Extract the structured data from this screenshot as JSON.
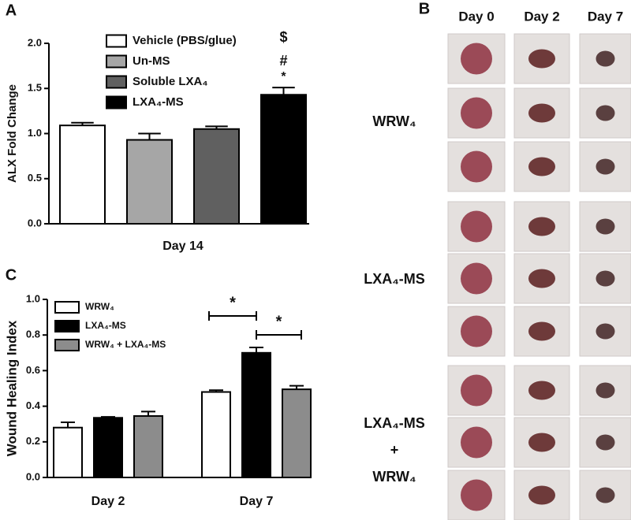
{
  "chart_data": [
    {
      "type": "bar",
      "panel": "A",
      "ylabel": "ALX Fold Change",
      "categories": [
        "Day 14"
      ],
      "series": [
        {
          "name": "Vehicle (PBS/glue)",
          "color": "#ffffff",
          "values": [
            1.09
          ],
          "errors": [
            0.03
          ]
        },
        {
          "name": "Un-MS",
          "color": "#a6a6a6",
          "values": [
            0.93
          ],
          "errors": [
            0.07
          ]
        },
        {
          "name": "Soluble LXA₄",
          "color": "#606060",
          "values": [
            1.05
          ],
          "errors": [
            0.03
          ]
        },
        {
          "name": "LXA₄-MS",
          "color": "#000000",
          "values": [
            1.43
          ],
          "errors": [
            0.08
          ]
        }
      ],
      "ylim": [
        0,
        2.0
      ],
      "yticks": [
        {
          "value": 0,
          "label": "0.0"
        },
        0.5,
        {
          "value": 1,
          "label": "1.0"
        },
        1.5,
        {
          "value": 2,
          "label": "2.0"
        }
      ],
      "annotations": [
        "$",
        "#",
        "*"
      ]
    },
    {
      "type": "bar",
      "panel": "C",
      "ylabel": "Wound Healing Index",
      "categories": [
        "Day 2",
        "Day 7"
      ],
      "series": [
        {
          "name": "WRW₄",
          "color": "#ffffff",
          "values": [
            0.28,
            0.48
          ],
          "errors": [
            0.03,
            0.01
          ]
        },
        {
          "name": "LXA₄-MS",
          "color": "#000000",
          "values": [
            0.335,
            0.7
          ],
          "errors": [
            0.005,
            0.03
          ]
        },
        {
          "name": "WRW₄ + LXA₄-MS",
          "color": "#8c8c8c",
          "values": [
            0.345,
            0.495
          ],
          "errors": [
            0.025,
            0.02
          ]
        }
      ],
      "ylim": [
        0,
        1.0
      ],
      "yticks": [
        {
          "value": 0,
          "label": "0.0"
        },
        0.2,
        0.4,
        0.6,
        0.8,
        {
          "value": 1,
          "label": "1.0"
        }
      ],
      "annotations": [
        "*",
        "*"
      ]
    }
  ],
  "panel_b": {
    "panel": "B",
    "columns": [
      "Day 0",
      "Day 2",
      "Day 7"
    ],
    "groups": [
      [
        "WRW₄"
      ],
      [
        "LXA₄-MS"
      ],
      [
        "LXA₄-MS",
        "+",
        "WRW₄"
      ]
    ]
  }
}
